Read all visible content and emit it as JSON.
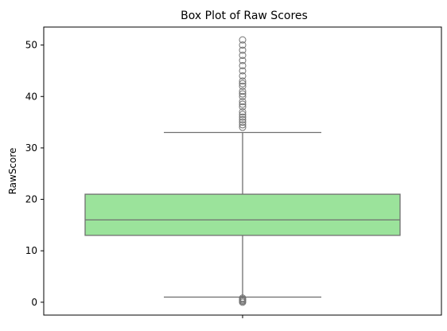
{
  "chart_data": {
    "type": "box",
    "title": "Box Plot of Raw Scores",
    "xlabel": "",
    "ylabel": "RawScore",
    "ylim": [
      -2.5,
      53.5
    ],
    "yticks": [
      0,
      10,
      20,
      30,
      40,
      50
    ],
    "grid": false,
    "legend": "none",
    "box": {
      "whisker_low": 1,
      "q1": 13,
      "median": 16,
      "q3": 21,
      "whisker_high": 33,
      "fill_color": "#9be39b",
      "line_color": "#707070"
    },
    "outliers_high": [
      34,
      34.5,
      35,
      35.5,
      36,
      36.5,
      37,
      38,
      38.5,
      39,
      40,
      40.5,
      41,
      42,
      42.5,
      43,
      44,
      45,
      46,
      47,
      48,
      49,
      50,
      51
    ],
    "outliers_low": [
      0,
      0.2,
      0.4,
      0.6,
      0.8
    ]
  }
}
